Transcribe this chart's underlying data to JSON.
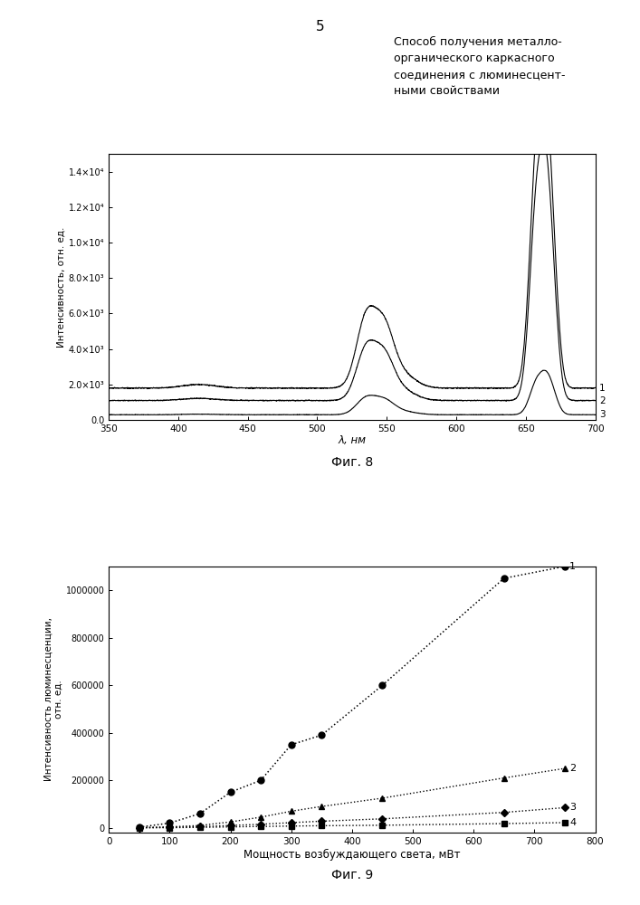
{
  "page_number": "5",
  "title_text": "Способ получения металло-\nорганического каркасного\nсоединения с люминесцент-\nными свойствами",
  "fig8_label": "Фиг. 8",
  "fig9_label": "Фиг. 9",
  "fig8": {
    "xlabel": "λ, нм",
    "ylabel": "Интенсивность, отн. ед.",
    "xlim": [
      350,
      700
    ],
    "ylim": [
      0,
      15000.0
    ],
    "yticks": [
      0.0,
      2000.0,
      4000.0,
      6000.0,
      8000.0,
      10000.0,
      12000.0,
      14000.0
    ],
    "ytick_labels": [
      "0.0",
      "2.0×10³",
      "4.0×10³",
      "6.0×10³",
      "8.0×10³",
      "1.0×10⁴",
      "1.2×10⁴",
      "1.4×10⁴"
    ],
    "xticks": [
      350,
      400,
      450,
      500,
      550,
      600,
      650,
      700
    ]
  },
  "fig9": {
    "xlabel": "Мощность возбуждающего света, мВт",
    "ylabel": "Интенсивность люминесценции,\nотн. ед.",
    "xlim": [
      0,
      800
    ],
    "ylim": [
      -20000,
      1100000
    ],
    "yticks": [
      0,
      200000,
      400000,
      600000,
      800000,
      1000000
    ],
    "ytick_labels": [
      "0",
      "200000",
      "400000",
      "600000",
      "800000",
      "1000000"
    ],
    "xticks": [
      0,
      100,
      200,
      300,
      400,
      500,
      600,
      700,
      800
    ],
    "s1x": [
      50,
      100,
      150,
      200,
      250,
      300,
      350,
      450,
      650,
      750
    ],
    "s1y": [
      3000,
      20000,
      60000,
      150000,
      200000,
      350000,
      390000,
      600000,
      1050000,
      1100000
    ],
    "s2x": [
      50,
      100,
      150,
      200,
      250,
      300,
      350,
      450,
      650,
      750
    ],
    "s2y": [
      1000,
      4000,
      10000,
      25000,
      45000,
      70000,
      90000,
      125000,
      210000,
      250000
    ],
    "s3x": [
      50,
      100,
      150,
      200,
      250,
      300,
      350,
      450,
      650,
      750
    ],
    "s3y": [
      500,
      2000,
      5000,
      10000,
      15000,
      22000,
      28000,
      38000,
      65000,
      85000
    ],
    "s4x": [
      50,
      100,
      150,
      200,
      250,
      300,
      350,
      450,
      650,
      750
    ],
    "s4y": [
      200,
      800,
      2000,
      4000,
      6000,
      7500,
      9000,
      11000,
      18000,
      22000
    ]
  }
}
